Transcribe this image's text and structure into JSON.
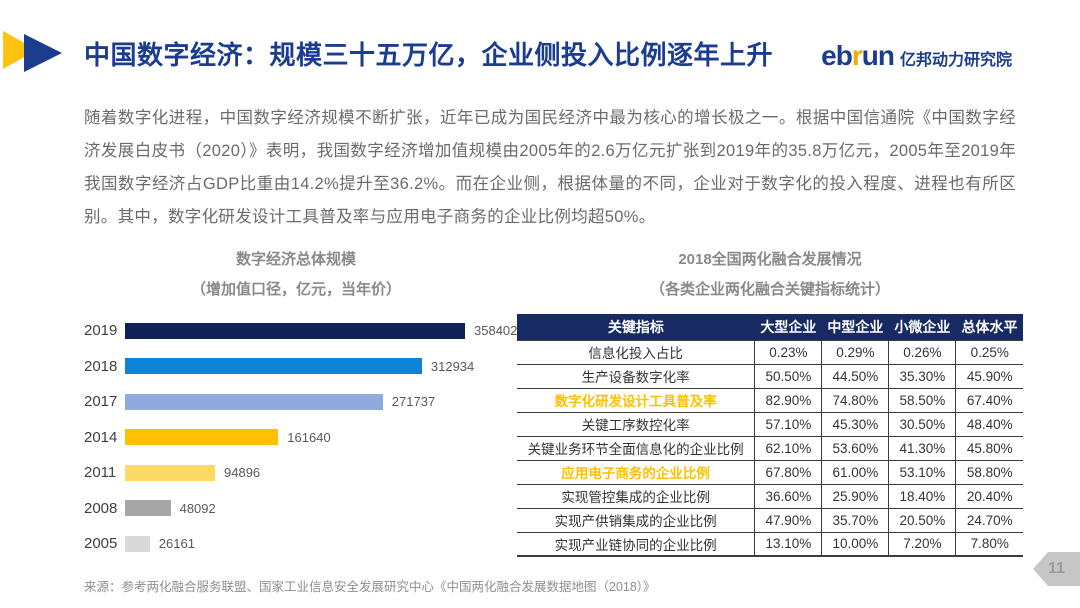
{
  "header": {
    "title": "中国数字经济：规模三十五万亿，企业侧投入比例逐年上升",
    "logo": {
      "eb": "eb",
      "r": "r",
      "un": "un",
      "name": "亿邦动力研究院"
    }
  },
  "intro": "随着数字化进程，中国数字经济规模不断扩张，近年已成为国民经济中最为核心的增长极之一。根据中国信通院《中国数字经济发展白皮书（2020）》表明，我国数字经济增加值规模由2005年的2.6万亿元扩张到2019年的35.8万亿元，2005年至2019年我国数字经济占GDP比重由14.2%提升至36.2%。而在企业侧，根据体量的不同，企业对于数字化的投入程度、进程也有所区别。其中，数字化研发设计工具普及率与应用电子商务的企业比例均超50%。",
  "chart_data": [
    {
      "type": "bar",
      "orientation": "horizontal",
      "title": "数字经济总体规模",
      "subtitle": "（增加值口径，亿元，当年价）",
      "categories": [
        "2019",
        "2018",
        "2017",
        "2014",
        "2011",
        "2008",
        "2005"
      ],
      "values": [
        358402,
        312934,
        271737,
        161640,
        94896,
        48092,
        26161
      ],
      "bar_colors": [
        "#0e2159",
        "#0f82d9",
        "#8faadc",
        "#ffc000",
        "#ffd966",
        "#a6a6a6",
        "#d9d9d9"
      ],
      "xlim": [
        0,
        358402
      ],
      "value_labels": true,
      "grid": false,
      "legend": false
    },
    {
      "type": "table",
      "title": "2018全国两化融合发展情况",
      "subtitle": "（各类企业两化融合关键指标统计）",
      "columns": [
        "关键指标",
        "大型企业",
        "中型企业",
        "小微企业",
        "总体水平"
      ],
      "rows": [
        {
          "label": "信息化投入占比",
          "values": [
            "0.23%",
            "0.29%",
            "0.26%",
            "0.25%"
          ],
          "highlight": false
        },
        {
          "label": "生产设备数字化率",
          "values": [
            "50.50%",
            "44.50%",
            "35.30%",
            "45.90%"
          ],
          "highlight": false
        },
        {
          "label": "数字化研发设计工具普及率",
          "values": [
            "82.90%",
            "74.80%",
            "58.50%",
            "67.40%"
          ],
          "highlight": true
        },
        {
          "label": "关键工序数控化率",
          "values": [
            "57.10%",
            "45.30%",
            "30.50%",
            "48.40%"
          ],
          "highlight": false
        },
        {
          "label": "关键业务环节全面信息化的企业比例",
          "values": [
            "62.10%",
            "53.60%",
            "41.30%",
            "45.80%"
          ],
          "highlight": false
        },
        {
          "label": "应用电子商务的企业比例",
          "values": [
            "67.80%",
            "61.00%",
            "53.10%",
            "58.80%"
          ],
          "highlight": true
        },
        {
          "label": "实现管控集成的企业比例",
          "values": [
            "36.60%",
            "25.90%",
            "18.40%",
            "20.40%"
          ],
          "highlight": false
        },
        {
          "label": "实现产供销集成的企业比例",
          "values": [
            "47.90%",
            "35.70%",
            "20.50%",
            "24.70%"
          ],
          "highlight": false
        },
        {
          "label": "实现产业链协同的企业比例",
          "values": [
            "13.10%",
            "10.00%",
            "7.20%",
            "7.80%"
          ],
          "highlight": false
        }
      ]
    }
  ],
  "footer": {
    "source": "来源：参考两化融合服务联盟、国家工业信息安全发展研究中心《中国两化融合发展数据地图（2018）》",
    "page_number": "11"
  },
  "colors": {
    "title_blue": "#1c3d8f",
    "logo_gold": "#f5a800",
    "deco_yellow": "#ffc20e",
    "table_header_bg": "#172a63",
    "highlight_gold": "#ffc000",
    "body_text": "#6b6b6b",
    "muted_gray": "#8a8a8a"
  }
}
